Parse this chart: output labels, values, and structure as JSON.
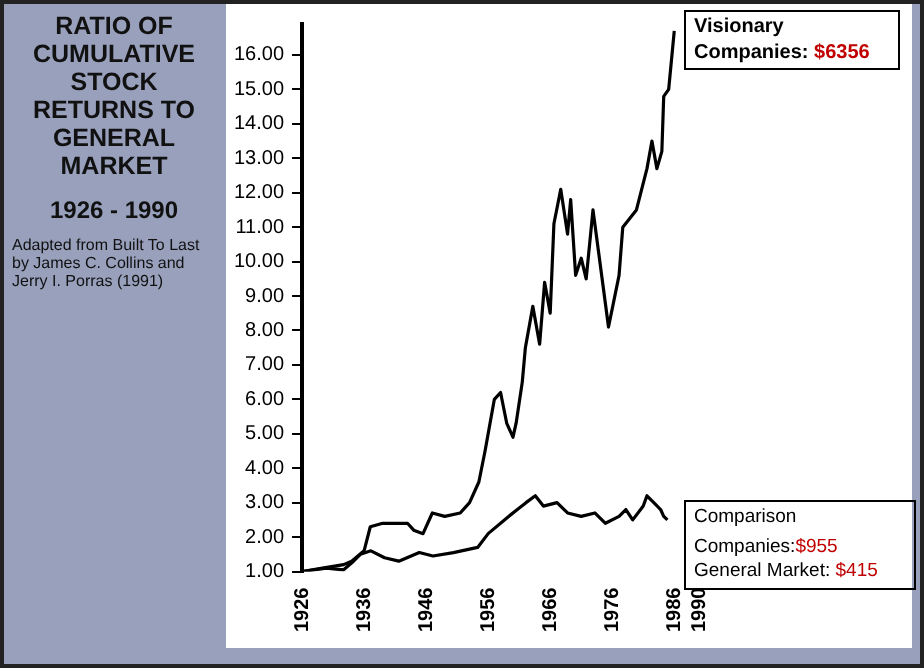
{
  "chart_data": {
    "type": "line",
    "title": "RATIO OF CUMULATIVE STOCK RETURNS TO GENERAL MARKET",
    "subtitle": "1926 - 1990",
    "annotations": [
      "Adapted from Built To Last by James C. Collins and Jerry I. Porras (1991)",
      "Visionary Companies:",
      "$6356",
      "Comparison",
      "Companies:",
      "$955",
      "General Market:",
      "$415"
    ],
    "series": [
      {
        "color": "#000000",
        "x": [
          1926,
          1929.3,
          1932.7,
          1934,
          1936,
          1937,
          1939,
          1943,
          1944,
          1945.5,
          1947,
          1949,
          1951.5,
          1953,
          1954.5,
          1955.5,
          1956,
          1957,
          1958,
          1959,
          1960,
          1960.5,
          1961.5,
          1962,
          1963.2,
          1964.3,
          1965.1,
          1966,
          1966.6,
          1967.7,
          1968.8,
          1969.3,
          1970.1,
          1971,
          1971.8,
          1972.9,
          1975.4,
          1977.1,
          1977.7,
          1979.9,
          1981.6,
          1982.4,
          1983.2,
          1984,
          1984.3,
          1985.1,
          1986
        ],
        "values": [
          1.0,
          1.1,
          1.2,
          1.3,
          1.6,
          2.3,
          2.4,
          2.4,
          2.2,
          2.1,
          2.7,
          2.6,
          2.7,
          3.0,
          3.6,
          4.5,
          5.0,
          6.0,
          6.2,
          5.3,
          4.9,
          5.3,
          6.5,
          7.5,
          8.7,
          7.6,
          9.4,
          8.5,
          11.1,
          12.1,
          10.8,
          11.8,
          9.6,
          10.1,
          9.5,
          11.5,
          8.1,
          9.6,
          11.0,
          11.5,
          12.7,
          13.5,
          12.7,
          13.2,
          14.8,
          15.0,
          16.7
        ]
      },
      {
        "color": "#000000",
        "x": [
          1926,
          1929.9,
          1932.7,
          1934.3,
          1935.4,
          1937.1,
          1939.3,
          1941.6,
          1944.9,
          1947.1,
          1950.4,
          1954.3,
          1956,
          1959.3,
          1962.1,
          1963.6,
          1964.9,
          1967.1,
          1968.8,
          1971,
          1973.2,
          1974.9,
          1977.1,
          1978.2,
          1979.3,
          1981,
          1981.6,
          1982.7,
          1983.8,
          1984.3,
          1984.9
        ],
        "values": [
          1.0,
          1.1,
          1.05,
          1.3,
          1.5,
          1.6,
          1.4,
          1.3,
          1.55,
          1.45,
          1.55,
          1.7,
          2.1,
          2.6,
          3.0,
          3.2,
          2.9,
          3.0,
          2.7,
          2.6,
          2.7,
          2.4,
          2.6,
          2.8,
          2.5,
          2.9,
          3.2,
          3.0,
          2.8,
          2.6,
          2.5
        ]
      }
    ],
    "xlim": [
      1926,
      2024
    ],
    "xticks": [
      1926,
      1936,
      1946,
      1956,
      1966,
      1976,
      1986,
      1990
    ],
    "ylim": [
      1,
      16.9
    ],
    "yticks": [
      {
        "value": 1,
        "label": "1.00"
      },
      {
        "value": 2,
        "label": "2.00"
      },
      {
        "value": 3,
        "label": "3.00"
      },
      {
        "value": 4,
        "label": "4.00"
      },
      {
        "value": 5,
        "label": "5.00"
      },
      {
        "value": 6,
        "label": "6.00"
      },
      {
        "value": 7,
        "label": "7.00"
      },
      {
        "value": 8,
        "label": "8.00"
      },
      {
        "value": 9,
        "label": "9.00"
      },
      {
        "value": 10,
        "label": "10.00"
      },
      {
        "value": 11,
        "label": "11.00"
      },
      {
        "value": 12,
        "label": "12.00"
      },
      {
        "value": 13,
        "label": "13.00"
      },
      {
        "value": 14,
        "label": "14.00"
      },
      {
        "value": 15,
        "label": "15.00"
      },
      {
        "value": 16,
        "label": "16.00"
      }
    ],
    "grid": false,
    "legend": false,
    "marker": "none",
    "line_style": "solid"
  }
}
